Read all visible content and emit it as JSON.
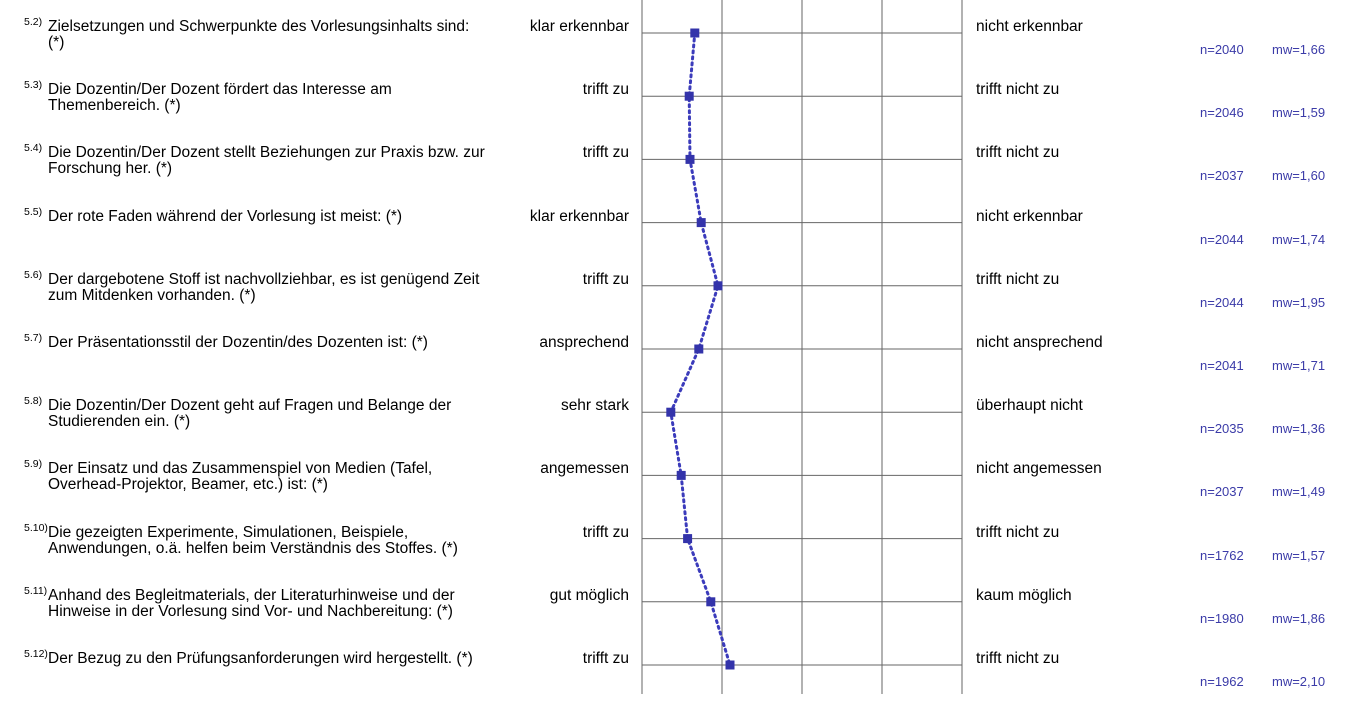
{
  "items": [
    {
      "num": "5.2)",
      "question": "Zielsetzungen und Schwerpunkte des Vorlesungsinhalts sind: (*)",
      "left": "klar erkennbar",
      "right": "nicht erkennbar",
      "n": "n=2040",
      "mw": "mw=1,66",
      "value": 1.66
    },
    {
      "num": "5.3)",
      "question": "Die Dozentin/Der Dozent fördert das Interesse am Themenbereich. (*)",
      "left": "trifft zu",
      "right": "trifft nicht zu",
      "n": "n=2046",
      "mw": "mw=1,59",
      "value": 1.59
    },
    {
      "num": "5.4)",
      "question": "Die Dozentin/Der Dozent stellt Beziehungen zur Praxis bzw. zur Forschung her. (*)",
      "left": "trifft zu",
      "right": "trifft nicht zu",
      "n": "n=2037",
      "mw": "mw=1,60",
      "value": 1.6
    },
    {
      "num": "5.5)",
      "question": "Der rote Faden während der Vorlesung ist meist: (*)",
      "left": "klar erkennbar",
      "right": "nicht erkennbar",
      "n": "n=2044",
      "mw": "mw=1,74",
      "value": 1.74
    },
    {
      "num": "5.6)",
      "question": "Der dargebotene Stoff ist nachvollziehbar, es ist genügend Zeit zum Mitdenken vorhanden. (*)",
      "left": "trifft zu",
      "right": "trifft nicht zu",
      "n": "n=2044",
      "mw": "mw=1,95",
      "value": 1.95
    },
    {
      "num": "5.7)",
      "question": "Der Präsentationsstil der Dozentin/des Dozenten ist: (*)",
      "left": "ansprechend",
      "right": "nicht ansprechend",
      "n": "n=2041",
      "mw": "mw=1,71",
      "value": 1.71
    },
    {
      "num": "5.8)",
      "question": "Die Dozentin/Der Dozent geht auf Fragen und Belange der Studierenden ein. (*)",
      "left": "sehr stark",
      "right": "überhaupt nicht",
      "n": "n=2035",
      "mw": "mw=1,36",
      "value": 1.36
    },
    {
      "num": "5.9)",
      "question": "Der Einsatz und das Zusammenspiel von Medien (Tafel, Overhead-Projektor, Beamer, etc.) ist: (*)",
      "left": "angemessen",
      "right": "nicht angemessen",
      "n": "n=2037",
      "mw": "mw=1,49",
      "value": 1.49
    },
    {
      "num": "5.10)",
      "question": "Die gezeigten Experimente, Simulationen, Beispiele, Anwendungen, o.ä. helfen beim Verständnis des Stoffes. (*)",
      "left": "trifft zu",
      "right": "trifft nicht zu",
      "n": "n=1762",
      "mw": "mw=1,57",
      "value": 1.57
    },
    {
      "num": "5.11)",
      "question": "Anhand des Begleitmaterials, der Literaturhinweise und der Hinweise in der Vorlesung sind Vor- und Nachbereitung: (*)",
      "left": "gut möglich",
      "right": "kaum möglich",
      "n": "n=1980",
      "mw": "mw=1,86",
      "value": 1.86
    },
    {
      "num": "5.12)",
      "question": "Der Bezug zu den Prüfungsanforderungen wird hergestellt. (*)",
      "left": "trifft zu",
      "right": "trifft nicht zu",
      "n": "n=1962",
      "mw": "mw=2,10",
      "value": 2.1
    }
  ],
  "scale": {
    "min": 1,
    "max": 5
  },
  "colors": {
    "marker": "#3333aa",
    "line": "#3b3bbb",
    "grid": "#666666",
    "stats": "#3b3ba8"
  }
}
